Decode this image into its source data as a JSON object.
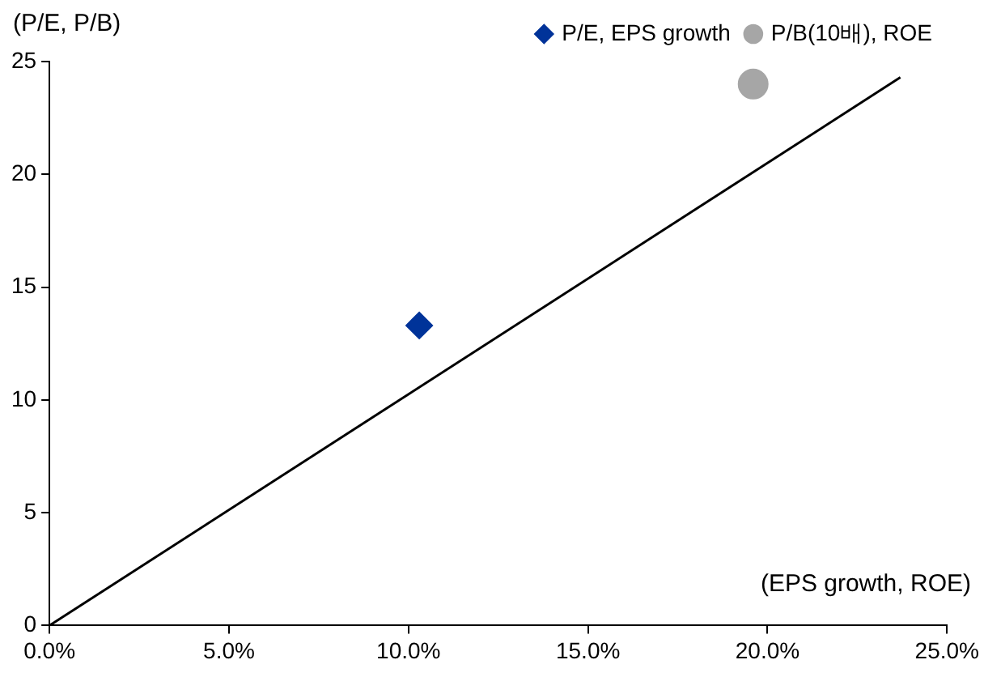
{
  "chart_data": {
    "type": "scatter",
    "xlabel": "(EPS growth, ROE)",
    "ylabel": "(P/E, P/B)",
    "xlim": [
      0,
      25
    ],
    "xticks": [
      {
        "value": 0,
        "label": "0.0%"
      },
      {
        "value": 5,
        "label": "5.0%"
      },
      {
        "value": 10,
        "label": "10.0%"
      },
      {
        "value": 15,
        "label": "15.0%"
      },
      {
        "value": 20,
        "label": "20.0%"
      },
      {
        "value": 25,
        "label": "25.0%"
      }
    ],
    "ylim": [
      0,
      25
    ],
    "yticks": [
      0,
      5,
      10,
      15,
      20,
      25
    ],
    "grid": false,
    "legend": "top",
    "series": [
      {
        "name": "P/E, EPS growth",
        "type": "scatter",
        "color": "#003399",
        "marker": "diamond",
        "x": [
          10.3
        ],
        "values": [
          13.3
        ]
      },
      {
        "name": "P/B(10배), ROE",
        "type": "scatter",
        "color": "#a6a6a6",
        "marker": "circle",
        "x": [
          19.6
        ],
        "values": [
          24.0
        ]
      },
      {
        "type": "line",
        "color": "#000000",
        "marker": "none",
        "x": [
          0,
          23.7
        ],
        "values": [
          0,
          24.3
        ]
      }
    ]
  }
}
